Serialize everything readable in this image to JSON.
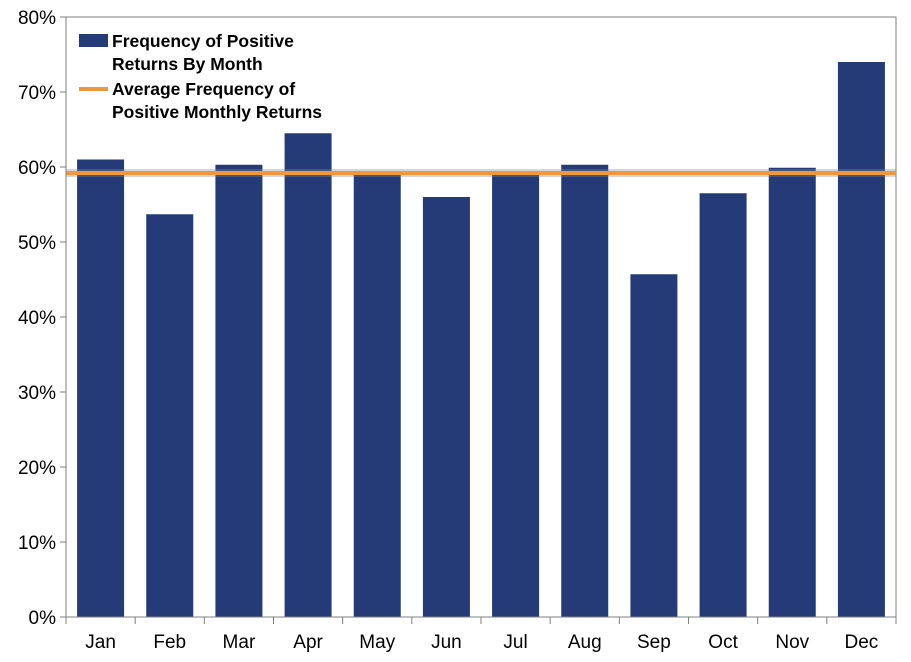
{
  "chart_data": {
    "type": "bar",
    "categories": [
      "Jan",
      "Feb",
      "Mar",
      "Apr",
      "May",
      "Jun",
      "Jul",
      "Aug",
      "Sep",
      "Oct",
      "Nov",
      "Dec"
    ],
    "series": [
      {
        "name": "Frequency of Positive Returns By Month",
        "type": "bar",
        "color": "#243b77",
        "values": [
          61.0,
          53.7,
          60.3,
          64.5,
          59.4,
          56.0,
          59.2,
          60.3,
          45.7,
          56.5,
          59.9,
          74.0
        ]
      },
      {
        "name": "Average Frequency of Positive Monthly Returns",
        "type": "line",
        "color": "#f0963c",
        "values": [
          59.2,
          59.2,
          59.2,
          59.2,
          59.2,
          59.2,
          59.2,
          59.2,
          59.2,
          59.2,
          59.2,
          59.2
        ]
      }
    ],
    "ylim": [
      0,
      80
    ],
    "y_ticks": [
      "0%",
      "10%",
      "20%",
      "30%",
      "40%",
      "50%",
      "60%",
      "70%",
      "80%"
    ],
    "legend": {
      "placement": "top-left",
      "bar_lines": [
        "Frequency of Positive",
        "Returns By Month"
      ],
      "line_lines": [
        "Average Frequency of",
        "Positive Monthly Returns"
      ]
    },
    "grid": false,
    "title": "",
    "xlabel": "",
    "ylabel": ""
  }
}
